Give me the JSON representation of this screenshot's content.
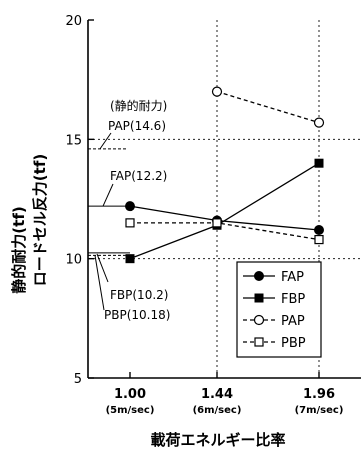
{
  "chart_data": {
    "type": "line",
    "categories": [
      "1.00",
      "1.44",
      "1.96"
    ],
    "category_sublabels": [
      "(5m/sec)",
      "(6m/sec)",
      "(7m/sec)"
    ],
    "ylim": [
      5,
      20
    ],
    "yticks": [
      "5",
      "10",
      "15",
      "20"
    ],
    "ylabel_lines": [
      "静的耐力(tf)",
      "ロードセル反力(tf)"
    ],
    "xlabel": "載荷エネルギー比率",
    "grid": "dotted at y=10,15 and x=1.44,1.96",
    "legend_position": "bottom-right",
    "series": [
      {
        "name": "FAP",
        "marker": "filled-circle",
        "line": "solid",
        "values": [
          12.2,
          11.6,
          11.2
        ]
      },
      {
        "name": "FBP",
        "marker": "filled-square",
        "line": "solid",
        "values": [
          10.0,
          11.4,
          14.0
        ]
      },
      {
        "name": "PAP",
        "marker": "open-circle",
        "line": "dashed",
        "values": [
          null,
          17.0,
          15.7
        ]
      },
      {
        "name": "PBP",
        "marker": "open-square",
        "line": "dashed",
        "values": [
          11.5,
          11.5,
          10.8
        ]
      }
    ],
    "static_title": "(静的耐力)",
    "static_annotations": [
      {
        "label": "PAP(14.6)",
        "value": 14.6
      },
      {
        "label": "FAP(12.2)",
        "value": 12.2
      },
      {
        "label": "FBP(10.2)",
        "value": 10.2
      },
      {
        "label": "PBP(10.18)",
        "value": 10.18
      }
    ]
  }
}
